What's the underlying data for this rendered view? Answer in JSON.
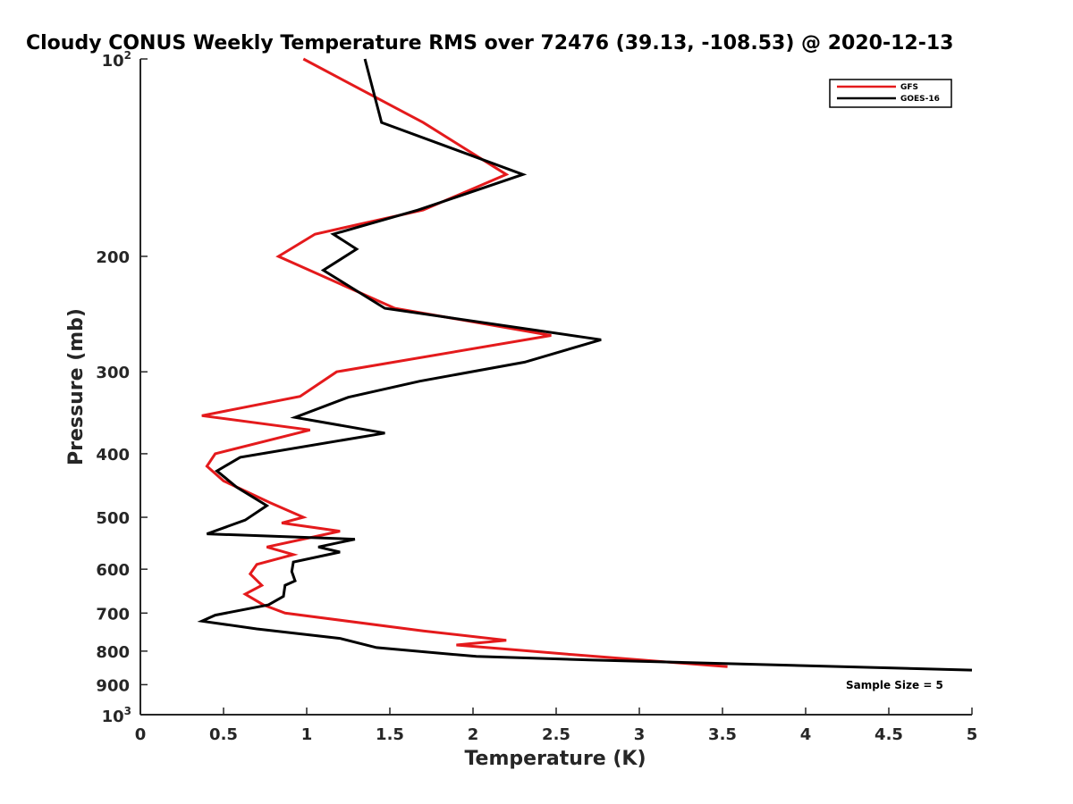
{
  "chart_data": {
    "type": "line",
    "title": "Cloudy CONUS Weekly Temperature RMS over 72476 (39.13, -108.53) @ 2020-12-13",
    "xlabel": "Temperature (K)",
    "ylabel": "Pressure (mb)",
    "xlim": [
      0,
      5
    ],
    "ylim": [
      100,
      1000
    ],
    "y_scale": "log",
    "y_reversed": true,
    "x_ticks": [
      "0",
      "0.5",
      "1",
      "1.5",
      "2",
      "2.5",
      "3",
      "3.5",
      "4",
      "4.5",
      "5"
    ],
    "y_ticks": [
      {
        "value": 100,
        "base": "10",
        "exp": "2"
      },
      {
        "value": 200,
        "label": "200"
      },
      {
        "value": 300,
        "label": "300"
      },
      {
        "value": 400,
        "label": "400"
      },
      {
        "value": 500,
        "label": "500"
      },
      {
        "value": 600,
        "label": "600"
      },
      {
        "value": 700,
        "label": "700"
      },
      {
        "value": 800,
        "label": "800"
      },
      {
        "value": 900,
        "label": "900"
      },
      {
        "value": 1000,
        "base": "10",
        "exp": "3"
      }
    ],
    "grid": false,
    "legend_position": "top-right",
    "annotation": "Sample Size = 5",
    "series": [
      {
        "name": "GFS",
        "color": "#e41a1c",
        "x": [
          0.98,
          1.7,
          2.2,
          1.7,
          1.05,
          0.83,
          1.53,
          2.47,
          1.18,
          0.96,
          0.37,
          1.02,
          0.45,
          0.4,
          0.5,
          0.78,
          0.98,
          0.85,
          1.2,
          0.76,
          0.92,
          0.7,
          0.66,
          0.73,
          0.63,
          0.74,
          0.87,
          1.7,
          2.2,
          1.9,
          2.6,
          3.53
        ],
        "y": [
          100,
          125,
          150,
          170,
          185,
          200,
          240,
          264,
          300,
          327,
          350,
          368,
          400,
          418,
          440,
          475,
          500,
          510,
          525,
          555,
          570,
          590,
          610,
          635,
          655,
          680,
          700,
          745,
          770,
          783,
          810,
          845
        ]
      },
      {
        "name": "GOES-16",
        "color": "#000000",
        "x": [
          1.35,
          1.45,
          2.3,
          1.67,
          1.16,
          1.3,
          1.1,
          1.47,
          2.77,
          2.31,
          1.68,
          1.25,
          0.93,
          1.47,
          0.6,
          0.46,
          0.58,
          0.76,
          0.63,
          0.4,
          1.29,
          1.07,
          1.2,
          0.92,
          0.91,
          0.93,
          0.87,
          0.86,
          0.77,
          0.45,
          0.37,
          0.7,
          1.2,
          1.42,
          2.02,
          2.7,
          5.0
        ],
        "y": [
          100,
          125,
          150,
          170,
          185,
          195,
          210,
          240,
          268,
          290,
          310,
          328,
          352,
          372,
          405,
          425,
          450,
          480,
          505,
          530,
          540,
          555,
          565,
          585,
          605,
          625,
          635,
          660,
          680,
          705,
          720,
          740,
          765,
          790,
          815,
          825,
          855
        ]
      }
    ]
  }
}
